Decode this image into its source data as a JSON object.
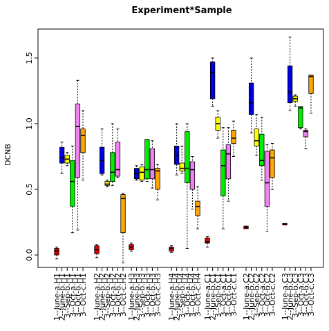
{
  "chart_data": {
    "type": "box",
    "title": "Experiment*Sample",
    "ylabel": "DCNB",
    "xlabel": "",
    "ylim": [
      -0.08,
      1.72
    ],
    "yticks": [
      0.0,
      0.5,
      1.0,
      1.5
    ],
    "ytick_labels": [
      "0.0",
      "0.5",
      "1.0",
      "1.5"
    ],
    "grid": false,
    "groups": [
      {
        "boxes": [
          {
            "label": "1--June-a.H1",
            "color": "#dd0000",
            "min": -0.03,
            "q1": 0.0,
            "median": 0.03,
            "q3": 0.05,
            "max": 0.06
          },
          {
            "label": "2--June-b.H1",
            "color": "#0000dd",
            "min": 0.62,
            "q1": 0.7,
            "median": 0.74,
            "q3": 0.82,
            "max": 0.86
          },
          {
            "label": "3--Sep-b.H1",
            "color": "#ffff00",
            "min": 0.68,
            "q1": 0.7,
            "median": 0.73,
            "q3": 0.76,
            "max": 0.78
          },
          {
            "label": "3--Oct-a.H1",
            "color": "#00ee00",
            "min": 0.17,
            "q1": 0.37,
            "median": 0.56,
            "q3": 0.72,
            "max": 0.83
          },
          {
            "label": "3--Oct-b.H1",
            "color": "#ee82ee",
            "min": 0.19,
            "q1": 0.59,
            "median": 0.98,
            "q3": 1.15,
            "max": 1.33
          },
          {
            "label": "3--Oct-c.H1",
            "color": "#ffa500",
            "min": 0.57,
            "q1": 0.78,
            "median": 0.91,
            "q3": 0.96,
            "max": 1.1
          }
        ]
      },
      {
        "boxes": [
          {
            "label": "1--June-a.H2",
            "color": "#dd0000",
            "min": -0.02,
            "q1": 0.01,
            "median": 0.04,
            "q3": 0.07,
            "max": 0.08
          },
          {
            "label": "2--June-b.H2",
            "color": "#0000dd",
            "min": 0.61,
            "q1": 0.62,
            "median": 0.72,
            "q3": 0.82,
            "max": 0.96
          },
          {
            "label": "3--Sep-b.H2",
            "color": "#ffff00",
            "min": 0.52,
            "q1": 0.53,
            "median": 0.54,
            "q3": 0.56,
            "max": 0.57
          },
          {
            "label": "3--Oct-a.H2",
            "color": "#00ee00",
            "min": 0.53,
            "q1": 0.56,
            "median": 0.63,
            "q3": 0.78,
            "max": 1.0
          },
          {
            "label": "3--Oct-b.H2",
            "color": "#ee82ee",
            "min": 0.59,
            "q1": 0.6,
            "median": 0.65,
            "q3": 0.86,
            "max": 0.96
          },
          {
            "label": "3--Oct-c.H2",
            "color": "#ffa500",
            "min": -0.06,
            "q1": 0.17,
            "median": 0.43,
            "q3": 0.46,
            "max": 0.47
          }
        ]
      },
      {
        "boxes": [
          {
            "label": "1--June-a.H3",
            "color": "#dd0000",
            "min": 0.03,
            "q1": 0.04,
            "median": 0.06,
            "q3": 0.08,
            "max": 0.09
          },
          {
            "label": "2--June-b.H3",
            "color": "#0000dd",
            "min": 0.57,
            "q1": 0.58,
            "median": 0.62,
            "q3": 0.66,
            "max": 0.68
          },
          {
            "label": "3--Sep-b.H3",
            "color": "#ffff00",
            "min": 0.56,
            "q1": 0.57,
            "median": 0.63,
            "q3": 0.67,
            "max": 0.69
          },
          {
            "label": "3--Oct-a.H3",
            "color": "#00ee00",
            "min": 0.56,
            "q1": 0.58,
            "median": 0.65,
            "q3": 0.88,
            "max": 0.88
          },
          {
            "label": "3--Oct-b.H3",
            "color": "#ee82ee",
            "min": 0.51,
            "q1": 0.58,
            "median": 0.65,
            "q3": 0.81,
            "max": 0.87
          },
          {
            "label": "3--Oct-c.H3",
            "color": "#ffa500",
            "min": 0.42,
            "q1": 0.5,
            "median": 0.64,
            "q3": 0.66,
            "max": 0.69
          }
        ]
      },
      {
        "boxes": [
          {
            "label": "1--June-a.H4",
            "color": "#dd0000",
            "min": 0.02,
            "q1": 0.03,
            "median": 0.05,
            "q3": 0.06,
            "max": 0.07
          },
          {
            "label": "2--June-b.H4",
            "color": "#0000dd",
            "min": 0.61,
            "q1": 0.69,
            "median": 0.76,
            "q3": 0.83,
            "max": 1.0
          },
          {
            "label": "3--Sep-b.H4",
            "color": "#ffff00",
            "min": 0.62,
            "q1": 0.64,
            "median": 0.66,
            "q3": 0.7,
            "max": 0.83
          },
          {
            "label": "3--Oct-a.H4",
            "color": "#00ee00",
            "min": 0.05,
            "q1": 0.55,
            "median": 0.66,
            "q3": 0.94,
            "max": 1.0
          },
          {
            "label": "3--Oct-b.H4",
            "color": "#ee82ee",
            "min": 0.35,
            "q1": 0.5,
            "median": 0.65,
            "q3": 0.71,
            "max": 0.75
          },
          {
            "label": "3--Oct-c.H4",
            "color": "#ffa500",
            "min": 0.2,
            "q1": 0.3,
            "median": 0.37,
            "q3": 0.41,
            "max": 0.52
          }
        ]
      },
      {
        "boxes": [
          {
            "label": "1--June-a.C1",
            "color": "#dd0000",
            "min": 0.06,
            "q1": 0.09,
            "median": 0.1,
            "q3": 0.13,
            "max": 0.14
          },
          {
            "label": "2--June-b.C1",
            "color": "#0000dd",
            "min": 1.13,
            "q1": 1.19,
            "median": 1.39,
            "q3": 1.47,
            "max": 1.5
          },
          {
            "label": "3--Sep-b.C1",
            "color": "#ffff00",
            "min": 0.89,
            "q1": 0.95,
            "median": 1.0,
            "q3": 1.05,
            "max": 1.1
          },
          {
            "label": "3--Oct-a.C1",
            "color": "#00ee00",
            "min": 0.2,
            "q1": 0.45,
            "median": 0.68,
            "q3": 0.8,
            "max": 0.97
          },
          {
            "label": "3--Oct-b.C1",
            "color": "#ee82ee",
            "min": 0.41,
            "q1": 0.58,
            "median": 0.77,
            "q3": 0.84,
            "max": 0.97
          },
          {
            "label": "3--Oct-c.C1",
            "color": "#ffa500",
            "min": 0.75,
            "q1": 0.85,
            "median": 0.89,
            "q3": 0.95,
            "max": 1.02
          }
        ]
      },
      {
        "boxes": [
          {
            "label": "1--June-a.C2",
            "color": "#dd0000",
            "min": 0.2,
            "q1": 0.2,
            "median": 0.21,
            "q3": 0.22,
            "max": 0.22
          },
          {
            "label": "2--June-b.C2",
            "color": "#0000dd",
            "min": 0.93,
            "q1": 1.07,
            "median": 1.16,
            "q3": 1.31,
            "max": 1.5
          },
          {
            "label": "3--Sep-b.C2",
            "color": "#ffff00",
            "min": 0.76,
            "q1": 0.83,
            "median": 0.87,
            "q3": 0.96,
            "max": 1.07
          },
          {
            "label": "3--Oct-a.C2",
            "color": "#00ee00",
            "min": 0.57,
            "q1": 0.68,
            "median": 0.72,
            "q3": 0.92,
            "max": 1.05
          },
          {
            "label": "3--Oct-b.C2",
            "color": "#ee82ee",
            "min": 0.18,
            "q1": 0.37,
            "median": 0.55,
            "q3": 0.79,
            "max": 0.84
          },
          {
            "label": "3--Oct-c.C2",
            "color": "#ffa500",
            "min": 0.5,
            "q1": 0.59,
            "median": 0.74,
            "q3": 0.8,
            "max": 0.85
          }
        ]
      },
      {
        "boxes": [
          {
            "label": "1--June-a.C3",
            "color": "#dd0000",
            "min": 0.23,
            "q1": 0.23,
            "median": 0.23,
            "q3": 0.24,
            "max": 0.24
          },
          {
            "label": "2--June-b.C3",
            "color": "#0000dd",
            "min": 1.1,
            "q1": 1.16,
            "median": 1.24,
            "q3": 1.44,
            "max": 1.66
          },
          {
            "label": "3--Sep-b.C3",
            "color": "#ffff00",
            "min": 1.13,
            "q1": 1.17,
            "median": 1.19,
            "q3": 1.21,
            "max": 1.22
          },
          {
            "label": "3--Oct-a.C3",
            "color": "#00ee00",
            "min": 0.96,
            "q1": 0.97,
            "median": 1.12,
            "q3": 1.13,
            "max": 1.13
          },
          {
            "label": "3--Oct-b.C3",
            "color": "#ee82ee",
            "min": 0.81,
            "q1": 0.9,
            "median": 0.94,
            "q3": 0.95,
            "max": 0.96
          },
          {
            "label": "3--Oct-c.C3",
            "color": "#ffa500",
            "min": 1.08,
            "q1": 1.23,
            "median": 1.36,
            "q3": 1.37,
            "max": 1.37
          }
        ]
      }
    ]
  }
}
